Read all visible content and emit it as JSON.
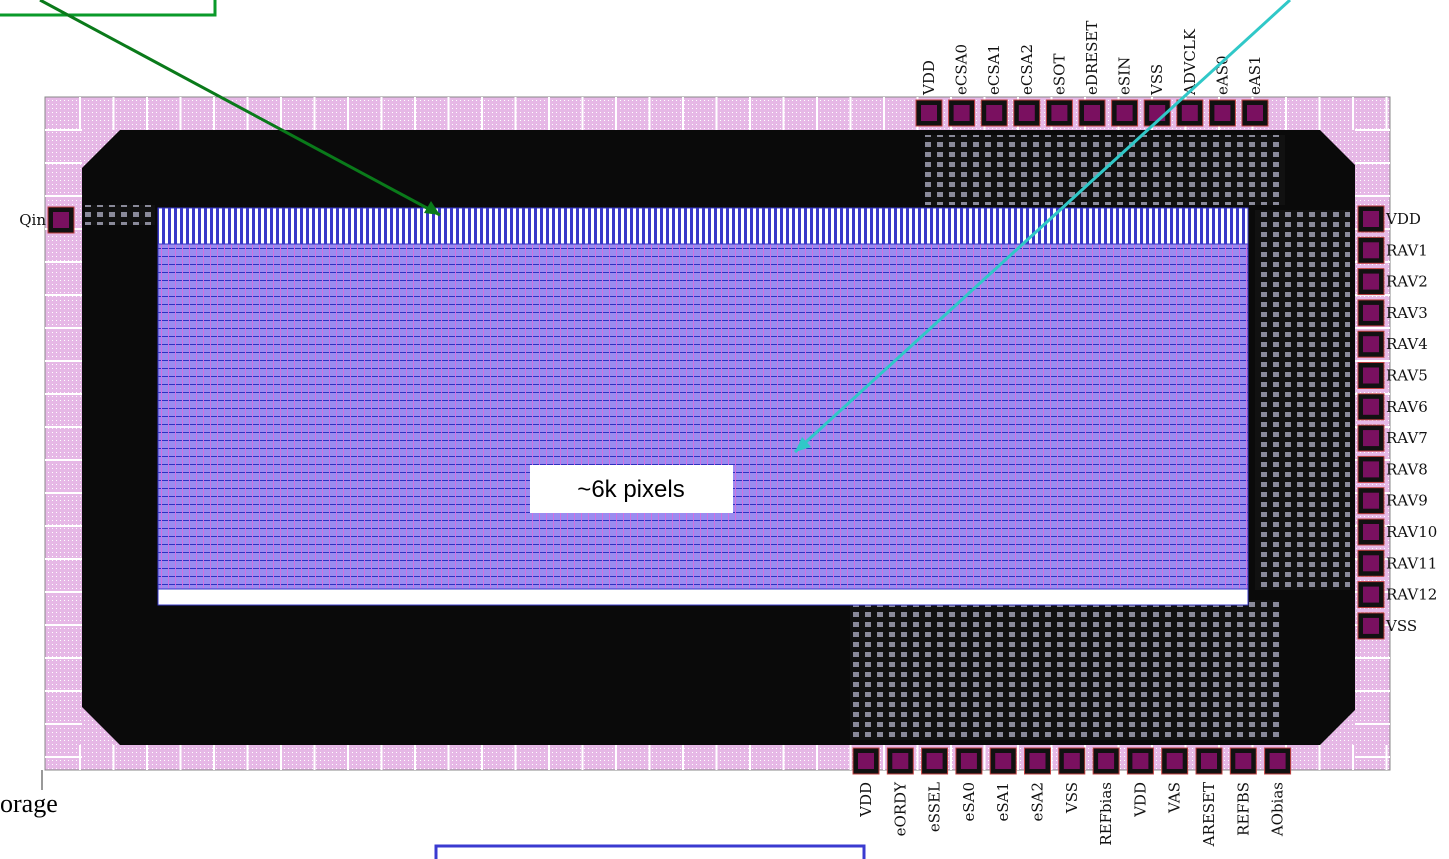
{
  "pins": {
    "top": [
      "VDD",
      "eCSA0",
      "eCSA1",
      "eCSA2",
      "eSOT",
      "eDRESET",
      "eSIN",
      "VSS",
      "ADVCLK",
      "eAS0",
      "eAS1"
    ],
    "left": [
      "Qin"
    ],
    "right": [
      "VDD",
      "RAV1",
      "RAV2",
      "RAV3",
      "RAV4",
      "RAV5",
      "RAV6",
      "RAV7",
      "RAV8",
      "RAV9",
      "RAV10",
      "RAV11",
      "RAV12",
      "VSS"
    ],
    "bottom": [
      "VDD",
      "eORDY",
      "eSSEL",
      "eSA0",
      "eSA1",
      "eSA2",
      "VSS",
      "REFbias",
      "VDD",
      "VAS",
      "ARESET",
      "REFBS",
      "AObias"
    ]
  },
  "annotations": {
    "array_label": "~6k pixels",
    "fragment_text": "orage"
  }
}
